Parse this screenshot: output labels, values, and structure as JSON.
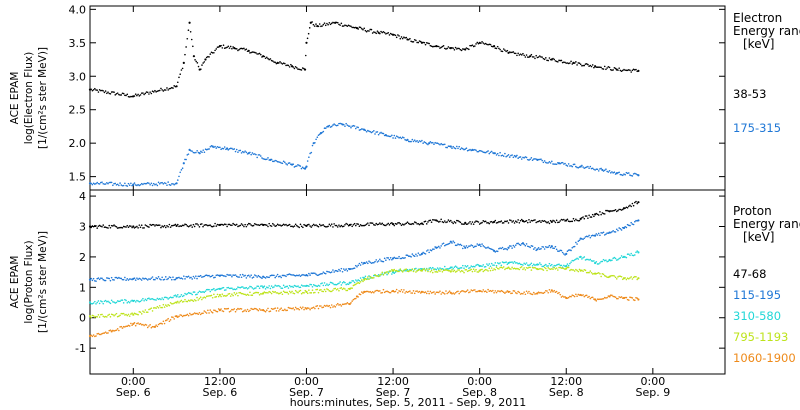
{
  "chart_data": [
    {
      "type": "scatter",
      "panel": "electron",
      "ylabel_lines": [
        "ACE EPAM",
        "log(Electron Flux)",
        "[1/(cm²s ster MeV)]"
      ],
      "ylim": [
        1.3,
        4.05
      ],
      "yticks": [
        1.5,
        2.0,
        2.5,
        3.0,
        3.5,
        4.0
      ],
      "ytick_labels": [
        "1.5",
        "2.0",
        "2.5",
        "3.0",
        "3.5",
        "4.0"
      ],
      "legend_title": [
        "Electron",
        "Energy range",
        "[keV]"
      ],
      "series": [
        {
          "name": "38-53",
          "color": "#000000",
          "x": [
            -6,
            0,
            6,
            7,
            7.8,
            8.4,
            9.2,
            10,
            12,
            14,
            16,
            18,
            20,
            22,
            23.8,
            24,
            24.6,
            25.5,
            28,
            31,
            34,
            36,
            38,
            40,
            42,
            44,
            46,
            48,
            50,
            52,
            55,
            58,
            61,
            64,
            67,
            70
          ],
          "y": [
            2.8,
            2.7,
            2.85,
            3.2,
            3.8,
            3.3,
            3.1,
            3.25,
            3.45,
            3.42,
            3.38,
            3.3,
            3.2,
            3.15,
            3.1,
            3.5,
            3.8,
            3.75,
            3.8,
            3.72,
            3.65,
            3.62,
            3.55,
            3.5,
            3.45,
            3.42,
            3.4,
            3.5,
            3.45,
            3.35,
            3.3,
            3.25,
            3.2,
            3.15,
            3.1,
            3.08
          ]
        },
        {
          "name": "175-315",
          "color": "#1f77d6",
          "x": [
            -6,
            0,
            6,
            7,
            7.8,
            9.2,
            11,
            13,
            16,
            19,
            22,
            23.8,
            24,
            25,
            26,
            27,
            29,
            32,
            35,
            38,
            41,
            44,
            47,
            50,
            53,
            56,
            59,
            62,
            65,
            67,
            70
          ],
          "y": [
            1.4,
            1.38,
            1.4,
            1.7,
            1.9,
            1.85,
            1.95,
            1.92,
            1.85,
            1.75,
            1.68,
            1.62,
            1.65,
            2.0,
            2.15,
            2.25,
            2.28,
            2.2,
            2.12,
            2.05,
            2.0,
            1.95,
            1.9,
            1.85,
            1.8,
            1.75,
            1.7,
            1.65,
            1.6,
            1.55,
            1.52
          ]
        }
      ]
    },
    {
      "type": "scatter",
      "panel": "proton",
      "xlabel": "hours:minutes, Sep.  5, 2011 - Sep.  9, 2011",
      "ylabel_lines": [
        "ACE EPAM",
        "log(Proton Flux)",
        "[1/(cm²s ster MeV)]"
      ],
      "ylim": [
        -1.85,
        4.2
      ],
      "yticks": [
        -1,
        0,
        1,
        2,
        3,
        4
      ],
      "ytick_labels": [
        "-1",
        "0",
        "1",
        "2",
        "3",
        "4"
      ],
      "legend_title": [
        "Proton",
        "Energy range",
        "[keV]"
      ],
      "series": [
        {
          "name": "47-68",
          "color": "#000000",
          "x": [
            -6,
            0,
            6,
            12,
            18,
            24,
            30,
            36,
            40,
            42,
            46,
            50,
            54,
            58,
            60,
            62,
            64,
            66,
            68,
            70
          ],
          "y": [
            3.0,
            3.0,
            3.02,
            3.05,
            3.05,
            3.02,
            3.05,
            3.08,
            3.1,
            3.2,
            3.12,
            3.15,
            3.18,
            3.15,
            3.2,
            3.25,
            3.4,
            3.5,
            3.6,
            3.8
          ]
        },
        {
          "name": "115-195",
          "color": "#1f77d6",
          "x": [
            -6,
            0,
            6,
            12,
            18,
            24,
            30,
            32,
            36,
            40,
            42,
            44,
            46,
            48,
            50,
            52,
            54,
            56,
            58,
            60,
            62,
            64,
            66,
            68,
            70
          ],
          "y": [
            1.25,
            1.28,
            1.3,
            1.38,
            1.35,
            1.4,
            1.6,
            1.8,
            1.95,
            2.1,
            2.3,
            2.5,
            2.3,
            2.4,
            2.2,
            2.3,
            2.45,
            2.25,
            2.35,
            2.1,
            2.6,
            2.7,
            2.8,
            2.95,
            3.2
          ]
        },
        {
          "name": "310-580",
          "color": "#22d7d7",
          "x": [
            -6,
            0,
            6,
            12,
            18,
            24,
            30,
            32,
            36,
            40,
            44,
            48,
            52,
            56,
            60,
            62,
            64,
            66,
            68,
            70
          ],
          "y": [
            0.5,
            0.55,
            0.7,
            0.95,
            1.0,
            1.05,
            1.15,
            1.3,
            1.5,
            1.6,
            1.65,
            1.7,
            1.8,
            1.75,
            1.7,
            2.0,
            1.8,
            1.9,
            2.0,
            2.15
          ]
        },
        {
          "name": "795-1193",
          "color": "#bde31a",
          "x": [
            -6,
            0,
            6,
            12,
            18,
            24,
            30,
            32,
            36,
            40,
            44,
            48,
            52,
            56,
            60,
            62,
            64,
            66,
            68,
            70
          ],
          "y": [
            0.05,
            0.1,
            0.5,
            0.75,
            0.8,
            0.85,
            0.95,
            1.25,
            1.55,
            1.55,
            1.52,
            1.55,
            1.65,
            1.6,
            1.62,
            1.55,
            1.45,
            1.35,
            1.3,
            1.3
          ]
        },
        {
          "name": "1060-1900",
          "color": "#ee8a1a",
          "x": [
            -6,
            -3,
            0,
            3,
            6,
            12,
            18,
            24,
            30,
            31,
            32,
            36,
            40,
            44,
            48,
            52,
            56,
            58,
            60,
            62,
            64,
            66,
            68,
            70
          ],
          "y": [
            -0.6,
            -0.45,
            -0.2,
            -0.3,
            0.05,
            0.25,
            0.25,
            0.3,
            0.45,
            0.7,
            0.85,
            0.88,
            0.85,
            0.82,
            0.88,
            0.85,
            0.8,
            0.9,
            0.65,
            0.75,
            0.6,
            0.7,
            0.65,
            0.6
          ]
        }
      ]
    }
  ],
  "x_axis": {
    "range_hours": [
      -6,
      82
    ],
    "ticks": [
      {
        "hour": 0,
        "time": "0:00",
        "date": "Sep. 6"
      },
      {
        "hour": 12,
        "time": "12:00",
        "date": "Sep. 6"
      },
      {
        "hour": 24,
        "time": "0:00",
        "date": "Sep. 7"
      },
      {
        "hour": 36,
        "time": "12:00",
        "date": "Sep. 7"
      },
      {
        "hour": 48,
        "time": "0:00",
        "date": "Sep. 8"
      },
      {
        "hour": 60,
        "time": "12:00",
        "date": "Sep. 8"
      },
      {
        "hour": 72,
        "time": "0:00",
        "date": "Sep. 9"
      }
    ]
  }
}
